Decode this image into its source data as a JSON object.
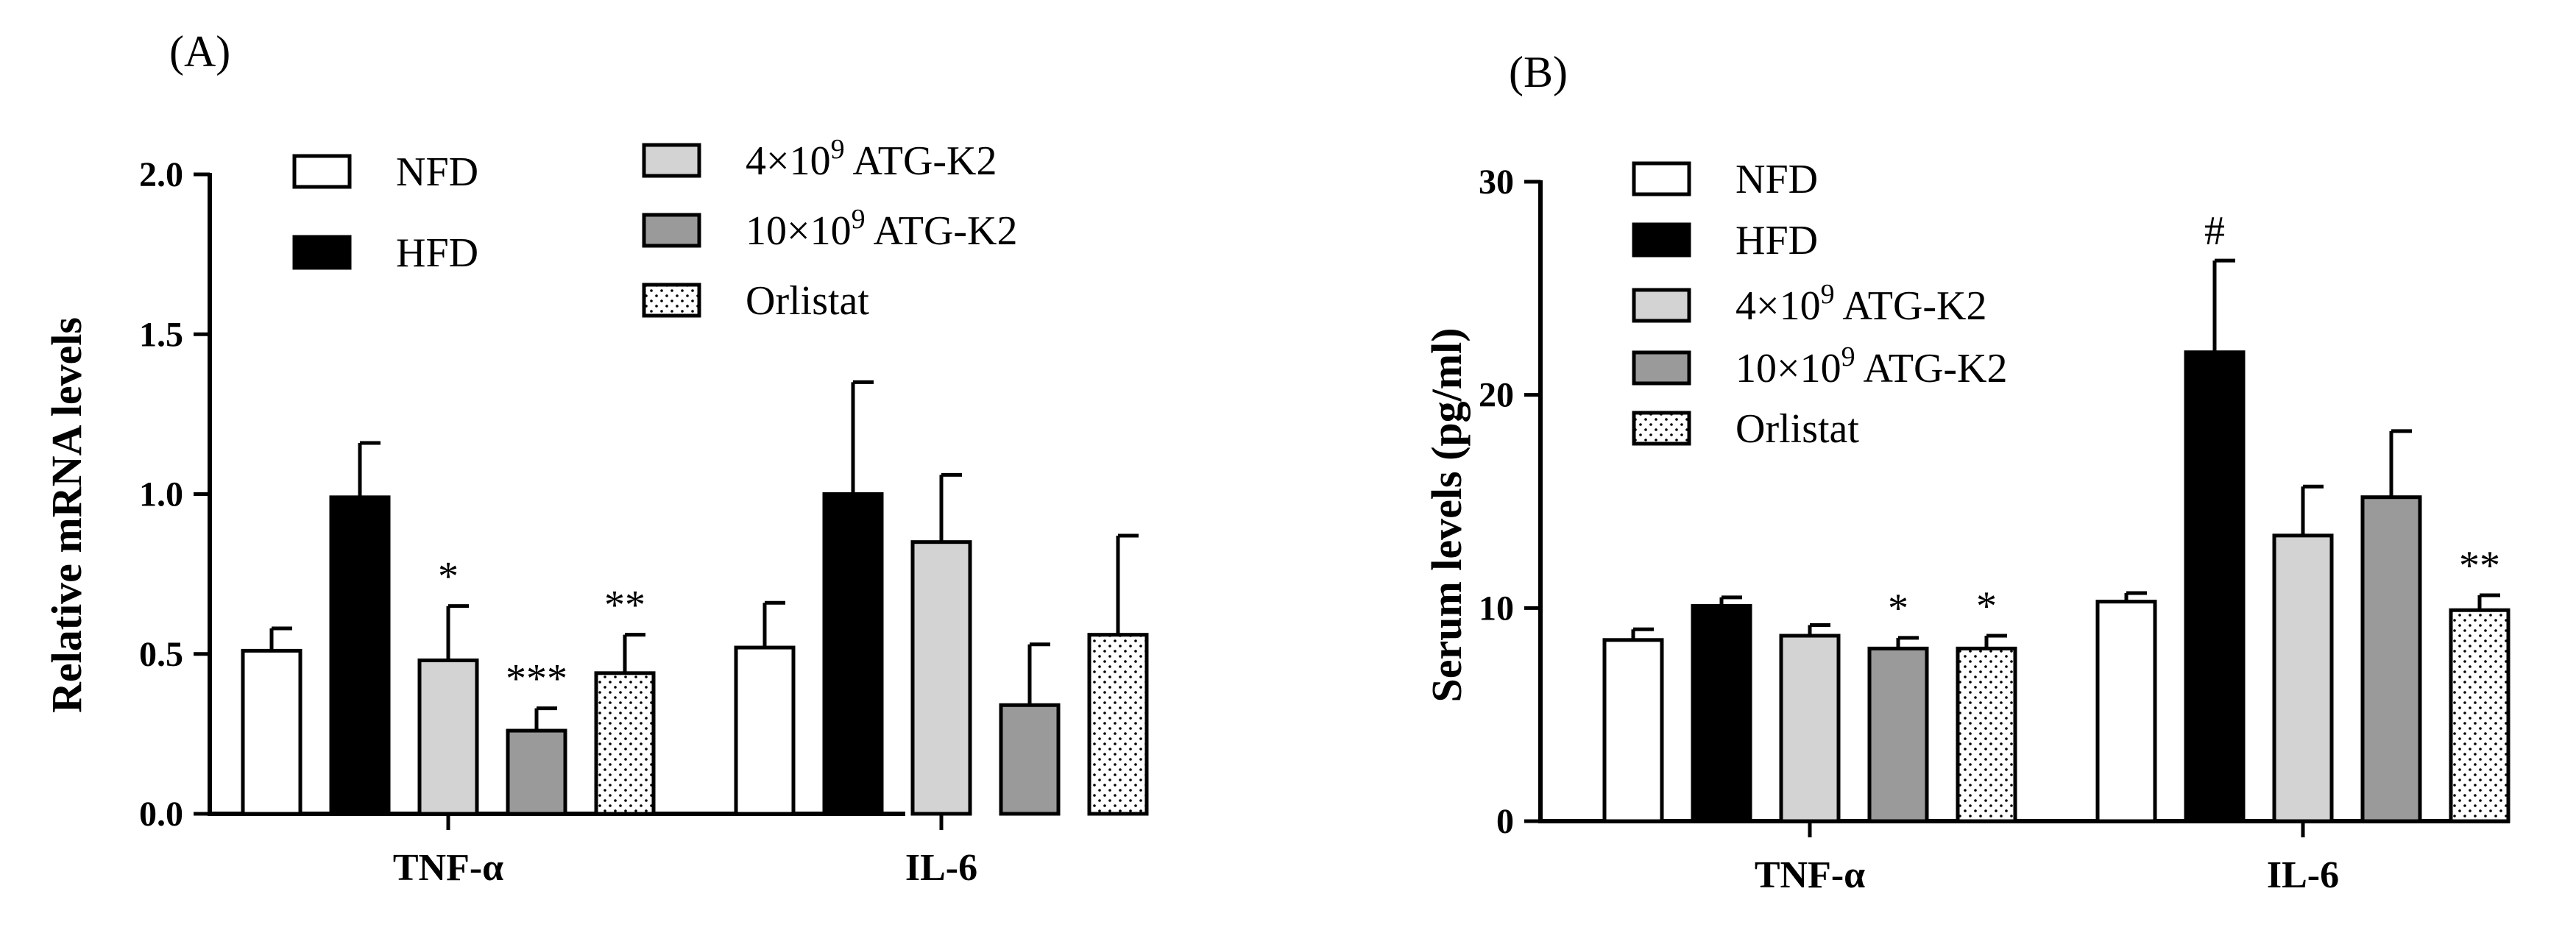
{
  "series_styles": {
    "NFD": {
      "fill": "#ffffff",
      "pattern": "none"
    },
    "HFD": {
      "fill": "#000000",
      "pattern": "none"
    },
    "ATG_low": {
      "fill": "#d3d3d3",
      "pattern": "none"
    },
    "ATG_high": {
      "fill": "#9a9a9a",
      "pattern": "none"
    },
    "Orlistat": {
      "fill": "#ffffff",
      "pattern": "dots"
    }
  },
  "chart_data": [
    {
      "panel_label": "(A)",
      "type": "bar",
      "ylabel": "Relative mRNA levels",
      "ylim": [
        0,
        2.0
      ],
      "yticks": [
        "0.0",
        "0.5",
        "1.0",
        "1.5",
        "2.0"
      ],
      "ytick_values": [
        0,
        0.5,
        1.0,
        1.5,
        2.0
      ],
      "categories": [
        "TNF-α",
        "IL-6"
      ],
      "legend_layout": "two-column",
      "series": [
        {
          "key": "NFD",
          "name": "NFD",
          "values": [
            0.51,
            0.52
          ],
          "errors": [
            0.07,
            0.14
          ],
          "marks": [
            "",
            ""
          ]
        },
        {
          "key": "HFD",
          "name": "HFD",
          "values": [
            0.99,
            1.0
          ],
          "errors": [
            0.17,
            0.35
          ],
          "marks": [
            "",
            ""
          ]
        },
        {
          "key": "ATG_low",
          "name_prefix": "4×10",
          "name_sup": "9",
          "name_suffix": " ATG-K2",
          "values": [
            0.48,
            0.85
          ],
          "errors": [
            0.17,
            0.21
          ],
          "marks": [
            "*",
            ""
          ]
        },
        {
          "key": "ATG_high",
          "name_prefix": "10×10",
          "name_sup": "9",
          "name_suffix": " ATG-K2",
          "values": [
            0.26,
            0.34
          ],
          "errors": [
            0.07,
            0.19
          ],
          "marks": [
            "***",
            ""
          ]
        },
        {
          "key": "Orlistat",
          "name": "Orlistat",
          "values": [
            0.44,
            0.56
          ],
          "errors": [
            0.12,
            0.31
          ],
          "marks": [
            "**",
            ""
          ]
        }
      ]
    },
    {
      "panel_label": "(B)",
      "type": "bar",
      "ylabel": "Serum levels (pg/ml)",
      "ylim": [
        0,
        30
      ],
      "yticks": [
        "0",
        "10",
        "20",
        "30"
      ],
      "ytick_values": [
        0,
        10,
        20,
        30
      ],
      "categories": [
        "TNF-α",
        "IL-6"
      ],
      "legend_layout": "one-column",
      "series": [
        {
          "key": "NFD",
          "name": "NFD",
          "values": [
            8.5,
            10.3
          ],
          "errors": [
            0.5,
            0.4
          ],
          "marks": [
            "",
            ""
          ]
        },
        {
          "key": "HFD",
          "name": "HFD",
          "values": [
            10.1,
            22.0
          ],
          "errors": [
            0.4,
            4.3
          ],
          "marks": [
            "",
            "#"
          ]
        },
        {
          "key": "ATG_low",
          "name_prefix": "4×10",
          "name_sup": "9",
          "name_suffix": " ATG-K2",
          "values": [
            8.7,
            13.4
          ],
          "errors": [
            0.5,
            2.3
          ],
          "marks": [
            "",
            ""
          ]
        },
        {
          "key": "ATG_high",
          "name_prefix": "10×10",
          "name_sup": "9",
          "name_suffix": " ATG-K2",
          "values": [
            8.1,
            15.2
          ],
          "errors": [
            0.5,
            3.1
          ],
          "marks": [
            "*",
            ""
          ]
        },
        {
          "key": "Orlistat",
          "name": "Orlistat",
          "values": [
            8.1,
            9.9
          ],
          "errors": [
            0.6,
            0.7
          ],
          "marks": [
            "*",
            "**"
          ]
        }
      ]
    }
  ]
}
